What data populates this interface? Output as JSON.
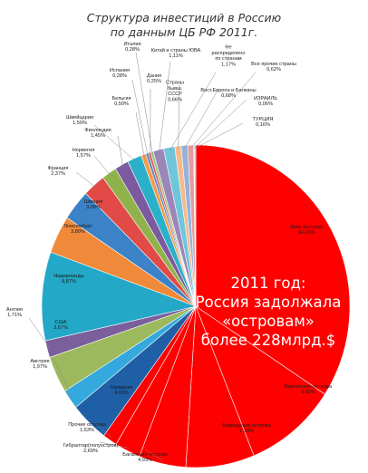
{
  "title_lines": [
    "Структура инвестиций в Россию",
    "по данным ЦБ РФ 2011г."
  ],
  "overlay_lines": [
    "2011 год:",
    "Россия задолжала",
    "«островам»",
    "более 228млрд.$"
  ],
  "chart_data": {
    "type": "pie",
    "title": "Структура инвестиций в Россию по данным ЦБ РФ 2011г.",
    "unit": "%",
    "slices": [
      {
        "label": "Кипр (остров)",
        "value": 34.16,
        "value_text": "34,16%",
        "color": "#ff0000"
      },
      {
        "label": "Виргинские острова",
        "value": 9.66,
        "value_text": "9,66%",
        "color": "#ff0000"
      },
      {
        "label": "Бермудские острова",
        "value": 7.18,
        "value_text": "7,18%",
        "color": "#ff0000"
      },
      {
        "label": "Багамские острова",
        "value": 4.93,
        "value_text": "4,93%",
        "color": "#ff0000"
      },
      {
        "label": "Гибралтар(полуостров)",
        "value": 2.69,
        "value_text": "2,69%",
        "color": "#ff0000"
      },
      {
        "label": "Прочие острова",
        "value": 1.53,
        "value_text": "1,53%",
        "color": "#ff0000"
      },
      {
        "label": "Германия",
        "value": 4.03,
        "value_text": "4,03%",
        "color": "#1f5fa6"
      },
      {
        "label": "Австрия",
        "value": 1.97,
        "value_text": "1,97%",
        "color": "#34a9dd"
      },
      {
        "label": "США",
        "value": 3.67,
        "value_text": "3,67%",
        "color": "#9cba5d"
      },
      {
        "label": "Англия",
        "value": 1.71,
        "value_text": "1,71%",
        "color": "#7a5f9c"
      },
      {
        "label": "Нидерланды",
        "value": 8.87,
        "value_text": "8,87%",
        "color": "#23a9c7"
      },
      {
        "label": "Люксембург",
        "value": 3.8,
        "value_text": "3,80%",
        "color": "#f08a3a"
      },
      {
        "label": "Швеция",
        "value": 3.08,
        "value_text": "3,08%",
        "color": "#3b82c6"
      },
      {
        "label": "Франция",
        "value": 2.37,
        "value_text": "2,37%",
        "color": "#e14a46"
      },
      {
        "label": "Норвегия",
        "value": 1.57,
        "value_text": "1,57%",
        "color": "#8fb34a"
      },
      {
        "label": "Финляндия",
        "value": 1.45,
        "value_text": "1,45%",
        "color": "#7c5aa0"
      },
      {
        "label": "Швейцария",
        "value": 1.5,
        "value_text": "1,50%",
        "color": "#2bb0c9"
      },
      {
        "label": "Бельгия",
        "value": 0.5,
        "value_text": "0,50%",
        "color": "#f59a4a"
      },
      {
        "label": "Испания",
        "value": 0.28,
        "value_text": "0,28%",
        "color": "#5a86c4"
      },
      {
        "label": "Дания",
        "value": 0.25,
        "value_text": "0,25%",
        "color": "#d85c5a"
      },
      {
        "label": "Италия",
        "value": 0.28,
        "value_text": "0,28%",
        "color": "#a7c27a"
      },
      {
        "label": "Китай и страны ЮВА",
        "value": 1.11,
        "value_text": "1,11%",
        "color": "#9b86ba"
      },
      {
        "label": "Не распределено по странам",
        "value": 1.17,
        "value_text": "1,17%",
        "color": "#6fc6da"
      },
      {
        "label": "Страны бывш. СССР",
        "value": 0.66,
        "value_text": "0,66%",
        "color": "#f8b98a"
      },
      {
        "label": "Вост.Европа и Балканы",
        "value": 0.68,
        "value_text": "0,68%",
        "color": "#94b2dc"
      },
      {
        "label": "Все прочие страны",
        "value": 0.62,
        "value_text": "0,62%",
        "color": "#e69c9a"
      },
      {
        "label": "ИЗРАИЛЬ",
        "value": 0.06,
        "value_text": "0,06%",
        "color": "#c5d9a5"
      },
      {
        "label": "ТУРЦИЯ",
        "value": 0.16,
        "value_text": "0,16%",
        "color": "#c3b7d8"
      }
    ]
  }
}
